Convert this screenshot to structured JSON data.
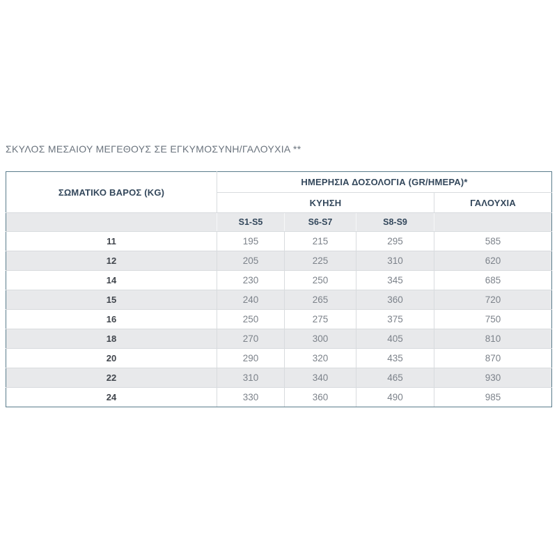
{
  "page": {
    "title": "ΣΚΥΛΟΣ ΜΕΣΑΙΟΥ ΜΕΓΕΘΟΥΣ ΣΕ ΕΓΚΥΜΟΣΥΝΗ/ΓΑΛΟΥΧΙΑ **"
  },
  "table": {
    "weight_header": "ΣΩΜΑΤΙΚΟ ΒΑΡΟΣ (KG)",
    "dosage_header": "ΗΜΕΡΗΣΙΑ ΔΟΣΟΛΟΓΙΑ (GR/ΗΜΕΡΑ)*",
    "pregnancy_header": "ΚΥΗΣΗ",
    "lactation_header": "ΓΑΛΟΥΧΙΑ",
    "stage_headers": [
      "S1-S5",
      "S6-S7",
      "S8-S9"
    ],
    "stage_header_lactation": "",
    "rows": [
      {
        "weight": "11",
        "values": [
          "195",
          "215",
          "295",
          "585"
        ]
      },
      {
        "weight": "12",
        "values": [
          "205",
          "225",
          "310",
          "620"
        ]
      },
      {
        "weight": "14",
        "values": [
          "230",
          "250",
          "345",
          "685"
        ]
      },
      {
        "weight": "15",
        "values": [
          "240",
          "265",
          "360",
          "720"
        ]
      },
      {
        "weight": "16",
        "values": [
          "250",
          "275",
          "375",
          "750"
        ]
      },
      {
        "weight": "18",
        "values": [
          "270",
          "300",
          "405",
          "810"
        ]
      },
      {
        "weight": "20",
        "values": [
          "290",
          "320",
          "435",
          "870"
        ]
      },
      {
        "weight": "22",
        "values": [
          "310",
          "340",
          "465",
          "930"
        ]
      },
      {
        "weight": "24",
        "values": [
          "330",
          "360",
          "490",
          "985"
        ]
      }
    ]
  },
  "colors": {
    "outer_border": "#597b8b",
    "inner_border": "#d8dbde",
    "stripe_bg": "#e8e9eb",
    "header_text": "#33475b",
    "value_text": "#7c828a",
    "weight_text": "#40454c",
    "title_text": "#6a737d"
  }
}
